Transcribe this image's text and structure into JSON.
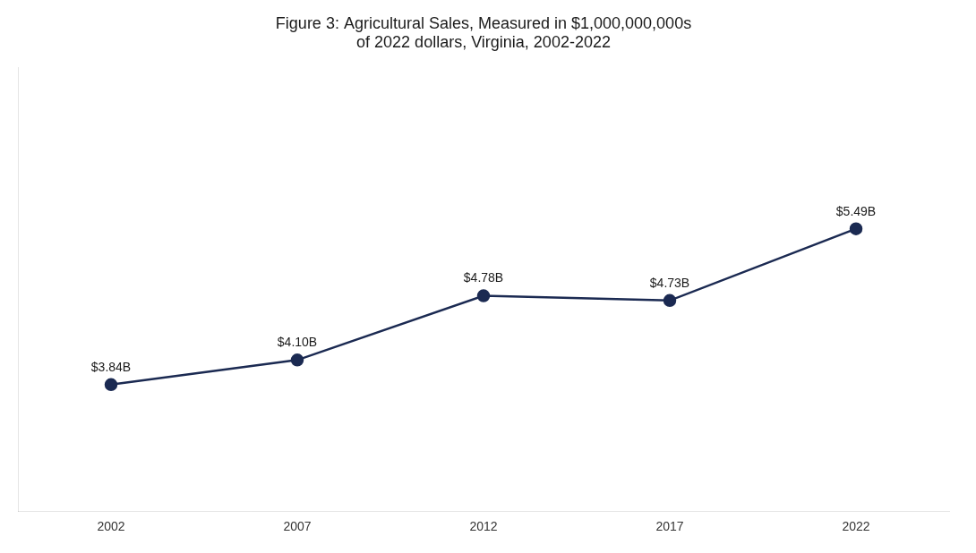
{
  "chart_data": {
    "type": "line",
    "title": "Figure 3: Agricultural Sales, Measured in $1,000,000,000s\nof 2022 dollars, Virginia, 2002-2022",
    "x": [
      2002,
      2007,
      2012,
      2017,
      2022
    ],
    "values": [
      3.84,
      4.1,
      4.78,
      4.73,
      5.49
    ],
    "value_labels": [
      "$3.84B",
      "$4.10B",
      "$4.78B",
      "$4.73B",
      "$5.49B"
    ],
    "data_labels": true,
    "color": "#1b2a52",
    "marker": "circle",
    "xlim": [
      1999.5,
      2024.5
    ],
    "xticks": [
      2002,
      2007,
      2012,
      2017,
      2022
    ],
    "ylim": [
      2.5,
      7.2
    ],
    "tick_labels": "x",
    "grid": false
  }
}
